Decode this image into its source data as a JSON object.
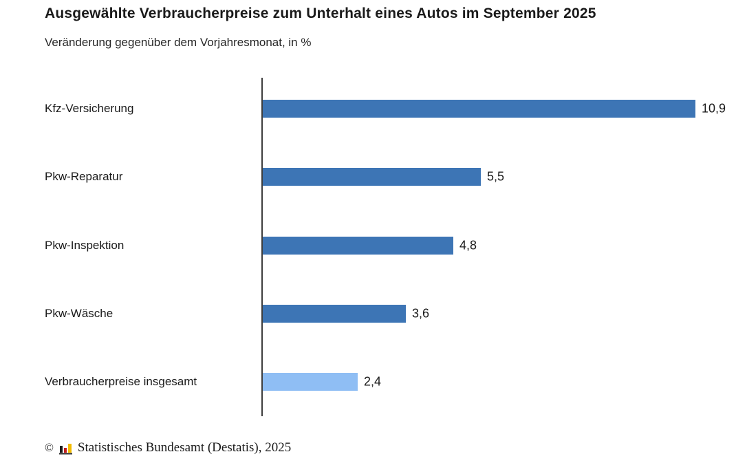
{
  "header": {
    "title": "Ausgewählte Verbraucherpreise zum Unterhalt eines Autos im September 2025",
    "subtitle": "Veränderung gegenüber dem Vorjahresmonat, in %"
  },
  "chart_data": {
    "type": "bar",
    "orientation": "horizontal",
    "title": "Ausgewählte Verbraucherpreise zum Unterhalt eines Autos im September 2025",
    "subtitle": "Veränderung gegenüber dem Vorjahresmonat, in %",
    "unit": "%",
    "categories": [
      "Kfz-Versicherung",
      "Pkw-Reparatur",
      "Pkw-Inspektion",
      "Pkw-Wäsche",
      "Verbraucherpreise insgesamt"
    ],
    "values": [
      10.9,
      5.5,
      4.8,
      3.6,
      2.4
    ],
    "value_labels": [
      "10,9",
      "5,5",
      "4,8",
      "3,6",
      "2,4"
    ],
    "highlight_index": 4,
    "xlim": [
      0,
      11.2
    ],
    "grid": false,
    "legend": false,
    "bar_color": "#3D75B5",
    "highlight_bar_color": "#8FBEF4"
  },
  "footer": {
    "copyright": "©",
    "source": "Statistisches Bundesamt (Destatis), 2025",
    "logo_icon": "destatis-bar-chart-icon"
  },
  "colors": {
    "bar_primary": "#3D75B5",
    "bar_total_highlight": "#8FBEF4",
    "axis": "#3d3d3d",
    "text": "#1a1a1a",
    "logo_black": "#1a1a1a",
    "logo_red": "#c41e1e",
    "logo_gold": "#f2bb00"
  }
}
